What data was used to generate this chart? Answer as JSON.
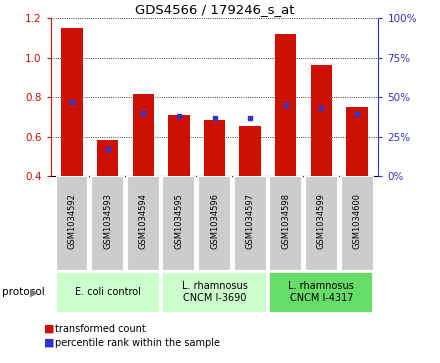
{
  "title": "GDS4566 / 179246_s_at",
  "samples": [
    "GSM1034592",
    "GSM1034593",
    "GSM1034594",
    "GSM1034595",
    "GSM1034596",
    "GSM1034597",
    "GSM1034598",
    "GSM1034599",
    "GSM1034600"
  ],
  "transformed_count": [
    1.15,
    0.585,
    0.815,
    0.71,
    0.685,
    0.655,
    1.12,
    0.965,
    0.75
  ],
  "percentile_rank": [
    47,
    17,
    40,
    38,
    37,
    37,
    45,
    43,
    39
  ],
  "ylim_left": [
    0.4,
    1.2
  ],
  "ylim_right": [
    0,
    100
  ],
  "yticks_left": [
    0.4,
    0.6,
    0.8,
    1.0,
    1.2
  ],
  "yticks_right": [
    0,
    25,
    50,
    75,
    100
  ],
  "bar_color": "#cc1100",
  "dot_color": "#3333cc",
  "group_labels": [
    "E. coli control",
    "L. rhamnosus\nCNCM I-3690",
    "L. rhamnosus\nCNCM I-4317"
  ],
  "group_ranges": [
    [
      0,
      2
    ],
    [
      3,
      5
    ],
    [
      6,
      8
    ]
  ],
  "group_colors": [
    "#ccffcc",
    "#ccffcc",
    "#66dd66"
  ],
  "sample_bg_color": "#cccccc",
  "protocol_label": "protocol",
  "legend_bar_label": "transformed count",
  "legend_dot_label": "percentile rank within the sample",
  "bg_color": "#ffffff"
}
